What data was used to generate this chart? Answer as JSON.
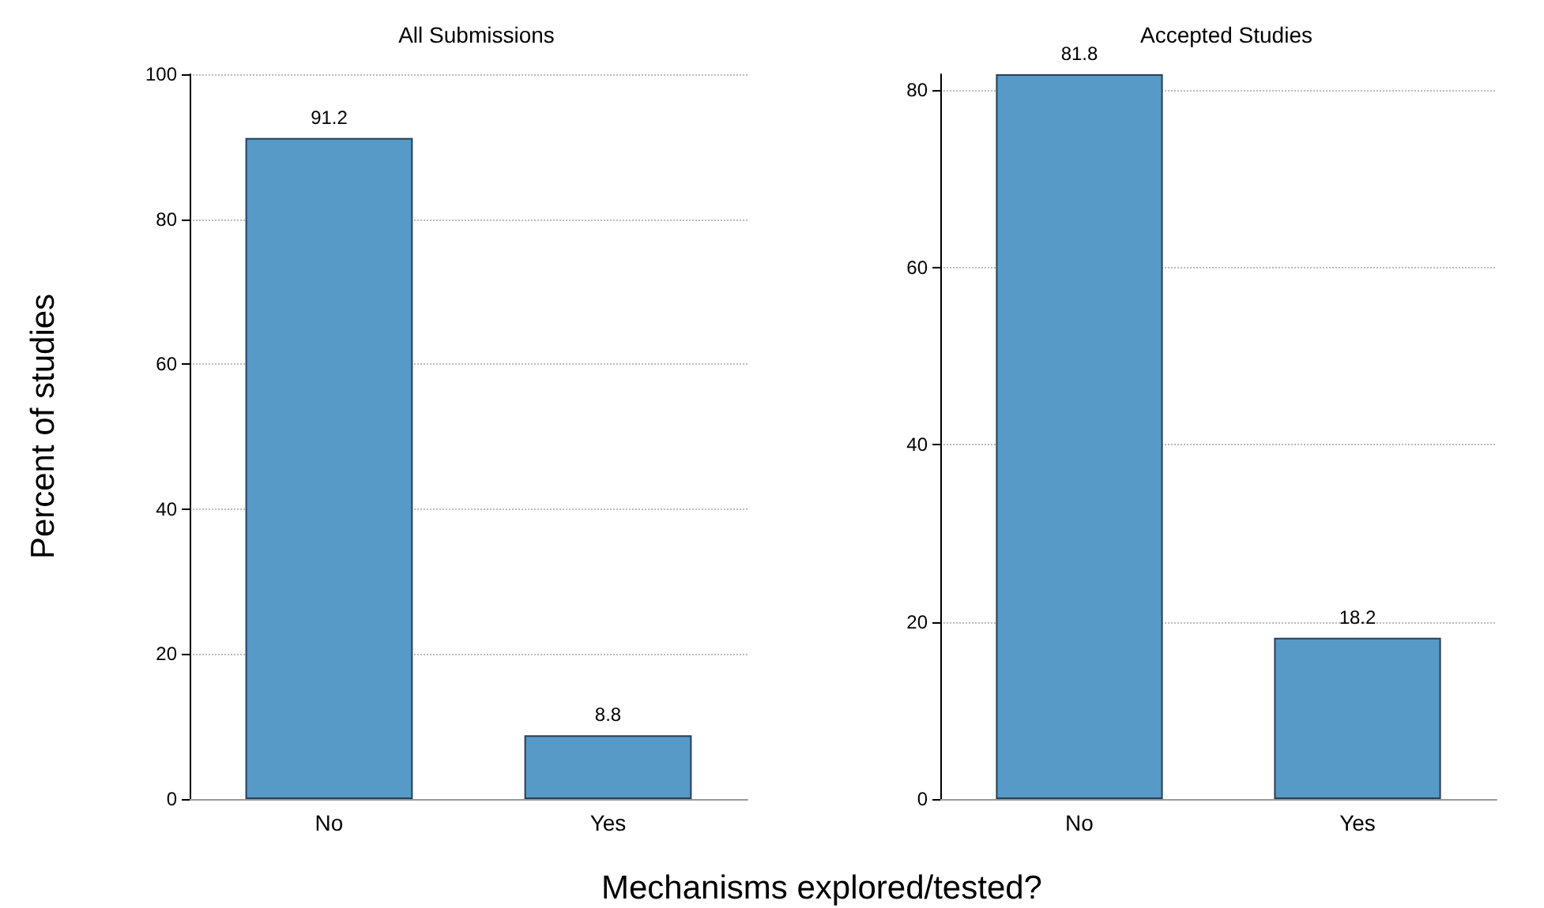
{
  "chart_data": [
    {
      "type": "bar",
      "title": "All Submissions",
      "ylabel": "Percent of studies",
      "xlabel": "Mechanisms explored/tested?",
      "categories": [
        "No",
        "Yes"
      ],
      "values": [
        91.2,
        8.8
      ],
      "color": "#5799c7",
      "ylim": [
        0,
        100
      ],
      "yticks": [
        0,
        20,
        40,
        60,
        80,
        100
      ],
      "grid": "y",
      "data_labels": true
    },
    {
      "type": "bar",
      "title": "Accepted Studies",
      "categories": [
        "No",
        "Yes"
      ],
      "values": [
        81.8,
        18.2
      ],
      "color": "#5799c7",
      "ylim": [
        0,
        81.8
      ],
      "yticks": [
        0,
        20,
        40,
        60,
        80
      ],
      "grid": "y",
      "data_labels": true
    }
  ]
}
